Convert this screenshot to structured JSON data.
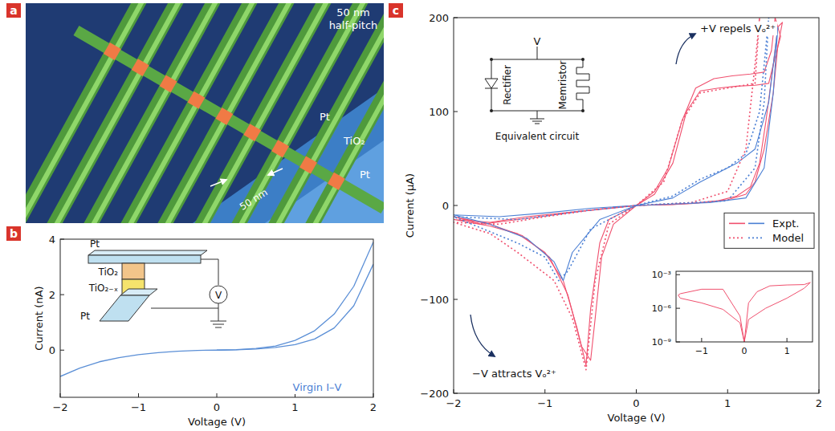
{
  "figure": {
    "letters": [
      "a",
      "b",
      "c"
    ],
    "panel_a": {
      "scale_text": [
        "50 nm",
        "half-pitch"
      ],
      "labels": [
        "Pt",
        "TiO₂",
        "Pt"
      ],
      "width_text": "50 nm"
    },
    "panel_b_inset": {
      "labels": [
        "Pt",
        "TiO₂",
        "TiO₂₋ₓ",
        "Pt"
      ],
      "meter": "V"
    },
    "panel_c_circuit": {
      "source": "V",
      "left": "Rectifier",
      "right": "Memristor",
      "caption": "Equivalent circuit"
    }
  },
  "chart_data": [
    {
      "type": "line",
      "x_label": "Voltage (V)",
      "y_label": "Current (nA)",
      "annotation": "Virgin I–V",
      "xlim": [
        -2,
        2
      ],
      "ylim": [
        -1.7,
        4
      ],
      "xticks": [
        {
          "value": -2,
          "label": "−2"
        },
        {
          "value": -1,
          "label": "−1"
        },
        0,
        1,
        2
      ],
      "yticks": [
        0,
        2,
        4
      ],
      "grid": false,
      "color": "#5b8fd6",
      "series": [
        {
          "x": [
            -2,
            -1.75,
            -1.5,
            -1.25,
            -1,
            -0.75,
            -0.5,
            -0.25,
            0,
            0.25,
            0.5,
            0.75,
            1,
            1.25,
            1.5,
            1.75,
            2
          ],
          "values": [
            -0.95,
            -0.65,
            -0.42,
            -0.27,
            -0.16,
            -0.09,
            -0.04,
            -0.01,
            0,
            0.02,
            0.06,
            0.15,
            0.35,
            0.7,
            1.3,
            2.3,
            3.9
          ]
        },
        {
          "x": [
            2,
            1.75,
            1.5,
            1.25,
            1,
            0.75,
            0.5,
            0.25,
            0
          ],
          "values": [
            3.1,
            1.6,
            0.8,
            0.4,
            0.2,
            0.1,
            0.04,
            0.01,
            0
          ]
        }
      ]
    },
    {
      "type": "line",
      "x_label": "Voltage (V)",
      "y_label": "Current (μA)",
      "annotations": [
        "+V repels Vₒ²⁺",
        "−V attracts Vₒ²⁺"
      ],
      "xlim": [
        -2,
        2
      ],
      "ylim": [
        -200,
        200
      ],
      "xticks": [
        {
          "value": -2,
          "label": "−2"
        },
        {
          "value": -1,
          "label": "−1"
        },
        0,
        1,
        2
      ],
      "yticks": [
        {
          "value": -200,
          "label": "−200"
        },
        {
          "value": -100,
          "label": "−100"
        },
        0,
        100,
        200
      ],
      "grid": false,
      "legend": "right",
      "series": [
        {
          "name": "Expt.",
          "color": "#f0506e",
          "line_style": "solid",
          "x": [
            0,
            0.2,
            0.4,
            0.55,
            0.7,
            0.9,
            1.1,
            1.3,
            1.45,
            1.5,
            1.55,
            1.6,
            1.55,
            1.5,
            1.4,
            1.3,
            1.2,
            1.0,
            0.7,
            0.4,
            0,
            -0.3,
            -0.4,
            -0.5,
            -0.55,
            -0.65,
            -0.8,
            -1.0,
            -1.3,
            -1.6,
            -2.0,
            -1.6,
            -1.2,
            -0.8,
            -0.5,
            -0.2,
            0
          ],
          "values": [
            0,
            12,
            45,
            100,
            122,
            125,
            127,
            128,
            130,
            150,
            190,
            195,
            170,
            120,
            60,
            25,
            12,
            6,
            3,
            1,
            0,
            -15,
            -40,
            -110,
            -170,
            -130,
            -80,
            -50,
            -30,
            -22,
            -15,
            -18,
            -12,
            -8,
            -5,
            -2,
            0
          ]
        },
        {
          "name": "Expt.",
          "color": "#f0506e",
          "line_style": "solid",
          "x": [
            0,
            0.2,
            0.35,
            0.5,
            0.65,
            0.85,
            1.05,
            1.25,
            1.4,
            1.48,
            1.52,
            1.58,
            1.5,
            1.42,
            1.35,
            1.25,
            1.1,
            0.9,
            0.6,
            0.3,
            0,
            -0.25,
            -0.38,
            -0.45,
            -0.5,
            -0.6,
            -0.75,
            -0.95,
            -1.25,
            -1.6,
            -2.0,
            -1.7,
            -1.3,
            -0.9,
            -0.6,
            -0.3,
            0
          ],
          "values": [
            0,
            15,
            40,
            90,
            125,
            135,
            138,
            140,
            142,
            165,
            200,
            180,
            150,
            90,
            45,
            20,
            10,
            5,
            2,
            1,
            0,
            -20,
            -55,
            -120,
            -165,
            -150,
            -95,
            -55,
            -32,
            -20,
            -12,
            -20,
            -15,
            -10,
            -6,
            -3,
            0
          ]
        },
        {
          "name": "Expt.",
          "color": "#4a7fd4",
          "line_style": "solid",
          "x": [
            0,
            0.4,
            0.7,
            0.9,
            1.1,
            1.3,
            1.45,
            1.55,
            1.5,
            1.4,
            1.2,
            0.8,
            0,
            -0.4,
            -0.7,
            -0.8,
            -0.9,
            -1.2,
            -1.6,
            -2,
            -1.5,
            -1,
            -0.5,
            0
          ],
          "values": [
            0,
            8,
            25,
            35,
            45,
            60,
            110,
            190,
            120,
            40,
            8,
            3,
            0,
            -15,
            -50,
            -80,
            -60,
            -35,
            -20,
            -10,
            -12,
            -8,
            -3,
            0
          ]
        },
        {
          "name": "Model",
          "color": "#f0506e",
          "line_style": "dotted",
          "x": [
            0,
            0.3,
            0.5,
            0.7,
            1.0,
            1.3,
            1.35,
            1.3,
            1.2,
            1.0,
            0.6,
            0,
            -0.3,
            -0.45,
            -0.55,
            -0.7,
            -0.9,
            -1.3,
            -1.6,
            -2,
            -1.5,
            -1,
            -0.5,
            0
          ],
          "values": [
            0,
            25,
            90,
            120,
            125,
            130,
            200,
            150,
            60,
            15,
            3,
            0,
            -20,
            -80,
            -175,
            -120,
            -80,
            -50,
            -30,
            -18,
            -20,
            -12,
            -5,
            0
          ]
        },
        {
          "name": "Model",
          "color": "#4a7fd4",
          "line_style": "dotted",
          "x": [
            0,
            0.4,
            0.7,
            1.0,
            1.2,
            1.35,
            1.45,
            1.4,
            1.3,
            1.0,
            0,
            -0.5,
            -0.75,
            -0.85,
            -1.0,
            -1.3,
            -2,
            -1.3,
            -0.6,
            0
          ],
          "values": [
            0,
            10,
            28,
            40,
            55,
            100,
            200,
            110,
            40,
            5,
            0,
            -25,
            -70,
            -80,
            -55,
            -40,
            -12,
            -15,
            -6,
            0
          ]
        }
      ]
    },
    {
      "type": "line",
      "log": "y",
      "xlim": [
        -1.6,
        1.6
      ],
      "ylim": [
        1e-09,
        0.002
      ],
      "xticks": [
        {
          "value": -1,
          "label": "−1"
        },
        0,
        1
      ],
      "yticks": [
        {
          "value": 1e-09,
          "label": "10⁻⁹"
        },
        {
          "value": 1e-06,
          "label": "10⁻⁶"
        },
        {
          "value": 0.001,
          "label": "10⁻³"
        }
      ],
      "grid": false,
      "color": "#f0506e",
      "series": [
        {
          "x": [
            0,
            0.1,
            0.3,
            0.6,
            1.0,
            1.4,
            1.55,
            1.4,
            1.0,
            0.5,
            0.1,
            0,
            -0.1,
            -0.5,
            -1.0,
            -1.5,
            -1.55,
            -1.5,
            -1.0,
            -0.5,
            -0.1,
            0
          ],
          "values": [
            1e-09,
            3e-06,
            3e-05,
            0.0001,
            0.00012,
            0.00013,
            0.0002,
            6e-05,
            8e-06,
            1e-06,
            1e-07,
            1e-09,
            2e-07,
            5e-05,
            5e-05,
            2e-05,
            1.5e-05,
            8e-06,
            3e-06,
            8e-07,
            5e-08,
            1e-09
          ]
        }
      ]
    }
  ]
}
